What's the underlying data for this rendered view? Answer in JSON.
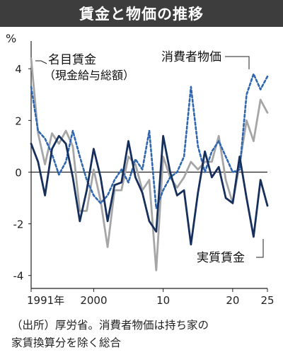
{
  "chart_data": {
    "type": "line",
    "title": "賃金と物価の推移",
    "unit_label": "%",
    "x": [
      1991,
      1992,
      1993,
      1994,
      1995,
      1996,
      1997,
      1998,
      1999,
      2000,
      2001,
      2002,
      2003,
      2004,
      2005,
      2006,
      2007,
      2008,
      2009,
      2010,
      2011,
      2012,
      2013,
      2014,
      2015,
      2016,
      2017,
      2018,
      2019,
      2020,
      2021,
      2022,
      2023,
      2024,
      2025
    ],
    "xlim": [
      1991,
      2025
    ],
    "ylim": [
      -4.5,
      4.8
    ],
    "x_ticks": [
      {
        "value": 1991,
        "label": "1991年"
      },
      {
        "value": 2000,
        "label": "2000"
      },
      {
        "value": 2010,
        "label": "10"
      },
      {
        "value": 2020,
        "label": "20"
      },
      {
        "value": 2025,
        "label": "25"
      }
    ],
    "y_ticks": [
      {
        "value": 4,
        "label": "4"
      },
      {
        "value": 2,
        "label": "2"
      },
      {
        "value": 0,
        "label": "0"
      },
      {
        "value": -2,
        "label": "-2"
      },
      {
        "value": -4,
        "label": "-4"
      }
    ],
    "series": [
      {
        "name": "名目賃金",
        "name_sub": "（現金給与総額）",
        "color": "#a6a6a6",
        "style": "solid",
        "values": [
          4.4,
          1.5,
          0.3,
          1.5,
          1.1,
          1.6,
          1.0,
          -1.5,
          -1.5,
          0.1,
          -1.1,
          -2.9,
          -0.7,
          -0.7,
          0.6,
          0.3,
          -0.7,
          -0.3,
          -3.8,
          0.6,
          -0.2,
          -0.6,
          -0.2,
          0.4,
          0.1,
          0.4,
          0.4,
          1.4,
          -0.3,
          -1.2,
          0.3,
          2.0,
          1.2,
          2.8,
          2.3
        ]
      },
      {
        "name": "消費者物価",
        "color": "#2e66b0",
        "style": "dashed",
        "values": [
          3.3,
          1.6,
          1.3,
          0.7,
          -0.1,
          0.4,
          1.6,
          0.6,
          -0.3,
          -0.9,
          -1.2,
          -0.9,
          -0.3,
          0.1,
          -0.4,
          0.5,
          0.1,
          1.6,
          -1.4,
          -0.7,
          -0.2,
          0.0,
          0.6,
          3.3,
          1.0,
          0.0,
          0.8,
          1.2,
          0.6,
          0.0,
          0.1,
          3.0,
          3.8,
          3.2,
          3.7
        ]
      },
      {
        "name": "実質賃金",
        "color": "#162f5c",
        "style": "solid",
        "values": [
          1.1,
          0.4,
          -0.9,
          0.9,
          1.4,
          1.1,
          -0.2,
          -1.9,
          -0.7,
          0.9,
          -0.2,
          -1.9,
          -0.5,
          -0.4,
          1.2,
          -0.2,
          -0.8,
          -1.9,
          -2.3,
          1.4,
          0.0,
          -0.9,
          -0.7,
          -2.8,
          -0.8,
          0.8,
          -0.2,
          0.2,
          -1.0,
          -1.2,
          0.6,
          -1.0,
          -2.5,
          -0.3,
          -1.3
        ]
      }
    ],
    "baseline": 0
  },
  "source": {
    "line1": "（出所）厚労省。消費者物価は持ち家の",
    "line2": "家賃換算分を除く総合"
  }
}
